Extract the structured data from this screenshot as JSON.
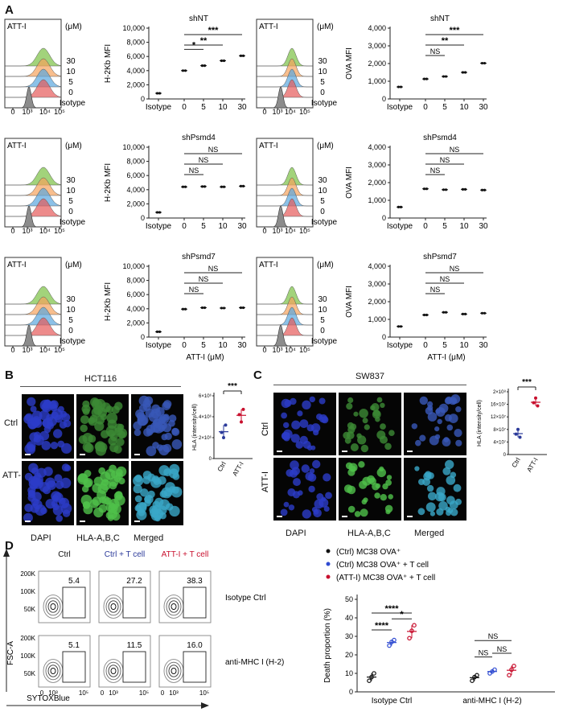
{
  "panels": {
    "A": "A",
    "B": "B",
    "C": "C",
    "D": "D"
  },
  "hist_text": {
    "drug": "ATT-I",
    "unit": "(μM)",
    "doses": [
      "30",
      "10",
      "5",
      "0"
    ],
    "isotype": "Isotype",
    "ticks": [
      "0",
      "10³",
      "10⁴",
      "10⁵"
    ]
  },
  "colors": {
    "green": "#7bc043",
    "orange": "#f5a25d",
    "blue": "#5aa6de",
    "red": "#e55a5a",
    "grey": "#8c8c8c",
    "navy": "#2b3a9a",
    "crimson": "#c8102e"
  },
  "chart_data": [
    {
      "type": "scatter",
      "title": "shNT",
      "ylabel": "H-2Kb MFI",
      "xlabel": "",
      "categories": [
        "Isotype",
        "0",
        "5",
        "10",
        "30"
      ],
      "ylim": [
        0,
        10000
      ],
      "yticks": [
        "0",
        "2,000",
        "4,000",
        "6,000",
        "8,000",
        "10,000"
      ],
      "values": [
        800,
        4000,
        4700,
        5400,
        6100
      ],
      "stats": [
        {
          "from": "0",
          "to": "5",
          "label": "*"
        },
        {
          "from": "0",
          "to": "10",
          "label": "**"
        },
        {
          "from": "0",
          "to": "30",
          "label": "***"
        }
      ]
    },
    {
      "type": "scatter",
      "title": "shNT",
      "ylabel": "OVA MFI",
      "xlabel": "",
      "categories": [
        "Isotype",
        "0",
        "5",
        "10",
        "30"
      ],
      "ylim": [
        0,
        4000
      ],
      "yticks": [
        "0",
        "1,000",
        "2,000",
        "3,000",
        "4,000"
      ],
      "values": [
        680,
        1130,
        1270,
        1500,
        2020
      ],
      "stats": [
        {
          "from": "0",
          "to": "5",
          "label": "NS"
        },
        {
          "from": "0",
          "to": "10",
          "label": "**"
        },
        {
          "from": "0",
          "to": "30",
          "label": "***"
        }
      ]
    },
    {
      "type": "scatter",
      "title": "shPsmd4",
      "ylabel": "H-2Kb MFI",
      "xlabel": "",
      "categories": [
        "Isotype",
        "0",
        "5",
        "10",
        "30"
      ],
      "ylim": [
        0,
        10000
      ],
      "yticks": [
        "0",
        "2,000",
        "4,000",
        "6,000",
        "8,000",
        "10,000"
      ],
      "values": [
        800,
        4400,
        4450,
        4400,
        4500
      ],
      "stats": [
        {
          "from": "0",
          "to": "5",
          "label": "NS"
        },
        {
          "from": "0",
          "to": "10",
          "label": "NS"
        },
        {
          "from": "0",
          "to": "30",
          "label": "NS"
        }
      ]
    },
    {
      "type": "scatter",
      "title": "shPsmd4",
      "ylabel": "OVA MFI",
      "xlabel": "",
      "categories": [
        "Isotype",
        "0",
        "5",
        "10",
        "30"
      ],
      "ylim": [
        0,
        4000
      ],
      "yticks": [
        "0",
        "1,000",
        "2,000",
        "3,000",
        "4,000"
      ],
      "values": [
        620,
        1650,
        1600,
        1620,
        1580
      ],
      "stats": [
        {
          "from": "0",
          "to": "5",
          "label": "NS"
        },
        {
          "from": "0",
          "to": "10",
          "label": "NS"
        },
        {
          "from": "0",
          "to": "30",
          "label": "NS"
        }
      ]
    },
    {
      "type": "scatter",
      "title": "shPsmd7",
      "ylabel": "H-2Kb MFI",
      "xlabel": "ATT-I (μM)",
      "categories": [
        "Isotype",
        "0",
        "5",
        "10",
        "30"
      ],
      "ylim": [
        0,
        10000
      ],
      "yticks": [
        "0",
        "2,000",
        "4,000",
        "6,000",
        "8,000",
        "10,000"
      ],
      "values": [
        750,
        3950,
        4150,
        4100,
        4150
      ],
      "stats": [
        {
          "from": "0",
          "to": "5",
          "label": "NS"
        },
        {
          "from": "0",
          "to": "10",
          "label": "NS"
        },
        {
          "from": "0",
          "to": "30",
          "label": "NS"
        }
      ]
    },
    {
      "type": "scatter",
      "title": "shPsmd7",
      "ylabel": "OVA MFI",
      "xlabel": "ATT-I (μM)",
      "categories": [
        "Isotype",
        "0",
        "5",
        "10",
        "30"
      ],
      "ylim": [
        0,
        4000
      ],
      "yticks": [
        "0",
        "1,000",
        "2,000",
        "3,000",
        "4,000"
      ],
      "values": [
        600,
        1250,
        1400,
        1300,
        1350
      ],
      "stats": [
        {
          "from": "0",
          "to": "5",
          "label": "NS"
        },
        {
          "from": "0",
          "to": "10",
          "label": "NS"
        },
        {
          "from": "0",
          "to": "30",
          "label": "NS"
        }
      ]
    },
    {
      "type": "scatter",
      "title": "",
      "ylabel": "HLA (intensity/cell)",
      "xlabel": "",
      "categories": [
        "Ctrl",
        "ATT-I"
      ],
      "ylim": [
        0,
        6000000
      ],
      "yticks": [
        "0",
        "2×10⁶",
        "4×10⁶",
        "6×10⁶"
      ],
      "values": [
        [
          2500000,
          2000000,
          3200000
        ],
        [
          4200000,
          3500000,
          4700000
        ]
      ],
      "stats": [
        {
          "from": "Ctrl",
          "to": "ATT-I",
          "label": "***"
        }
      ]
    },
    {
      "type": "scatter",
      "title": "",
      "ylabel": "HLA (intensity/cell)",
      "xlabel": "",
      "categories": [
        "Ctrl",
        "ATT-I"
      ],
      "ylim": [
        0,
        20000000
      ],
      "yticks": [
        "0",
        "4×10⁷",
        "8×10⁷",
        "12×10⁷",
        "16×10⁷",
        "2×10⁸"
      ],
      "values": [
        [
          6500000,
          8000000,
          5500000
        ],
        [
          16500000,
          18000000,
          15500000
        ]
      ],
      "stats": [
        {
          "from": "Ctrl",
          "to": "ATT-I",
          "label": "***"
        }
      ]
    },
    {
      "type": "scatter",
      "title": "",
      "ylabel": "Death proportion (%)",
      "xlabel": "",
      "categories": [
        "Isotype Ctrl",
        "anti-MHC I (H-2)"
      ],
      "ylim": [
        0,
        50
      ],
      "yticks": [
        "0",
        "10",
        "20",
        "30",
        "40",
        "50"
      ],
      "series": [
        {
          "name": "(Ctrl) MC38 OVA⁺",
          "values": [
            [
              6,
              8,
              10
            ],
            [
              6,
              8,
              9
            ]
          ]
        },
        {
          "name": "(Ctrl) MC38 OVA⁺ + T cell",
          "values": [
            [
              25,
              27,
              28
            ],
            [
              10,
              11,
              12
            ]
          ]
        },
        {
          "name": "(ATT-I) MC38 OVA⁺ + T cell",
          "values": [
            [
              29,
              33,
              36
            ],
            [
              9,
              12,
              14
            ]
          ]
        }
      ],
      "stats": [
        {
          "group": "Isotype Ctrl",
          "from": 0,
          "to": 1,
          "label": "****"
        },
        {
          "group": "Isotype Ctrl",
          "from": 0,
          "to": 2,
          "label": "****"
        },
        {
          "group": "Isotype Ctrl",
          "from": 1,
          "to": 2,
          "label": "*"
        },
        {
          "group": "anti-MHC I (H-2)",
          "from": 0,
          "to": 1,
          "label": "NS"
        },
        {
          "group": "anti-MHC I (H-2)",
          "from": 0,
          "to": 2,
          "label": "NS"
        },
        {
          "group": "anti-MHC I (H-2)",
          "from": 1,
          "to": 2,
          "label": "NS"
        }
      ]
    }
  ],
  "panel_b": {
    "title": "HCT116",
    "rows": [
      "Ctrl",
      "ATT-I"
    ],
    "cols": [
      "DAPI",
      "HLA-A,B,C",
      "Merged"
    ]
  },
  "panel_c": {
    "title": "SW837",
    "rows": [
      "Ctrl",
      "ATT-I"
    ],
    "cols": [
      "DAPI",
      "HLA-A,B,C",
      "Merged"
    ]
  },
  "panel_d": {
    "cols": [
      "Ctrl",
      "Ctrl + T cell",
      "ATT-I + T cell"
    ],
    "rows": [
      "Isotype Ctrl",
      "anti-MHC I (H-2)"
    ],
    "values": [
      [
        "5.4",
        "27.2",
        "38.3"
      ],
      [
        "5.1",
        "11.5",
        "16.0"
      ]
    ],
    "yaxis": "FSC-A",
    "xaxis": "SYTOXBlue",
    "yticks": [
      "200K",
      "100K",
      "50K"
    ],
    "xticks": [
      "0",
      "10³",
      "10⁵"
    ]
  }
}
